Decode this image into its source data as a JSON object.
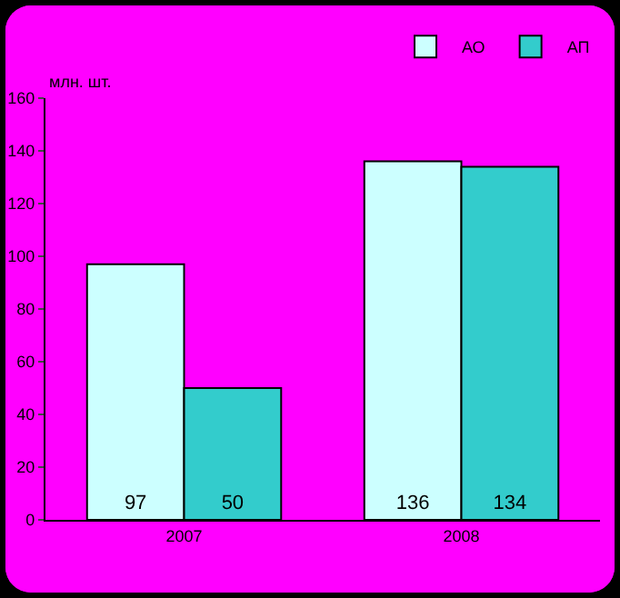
{
  "chart_data": {
    "type": "bar",
    "ylabel": "млн. шт.",
    "categories": [
      "2007",
      "2008"
    ],
    "series": [
      {
        "name": "АО",
        "color": "#ccffff",
        "values": [
          97,
          136
        ]
      },
      {
        "name": "АП",
        "color": "#33cccc",
        "values": [
          50,
          134
        ]
      }
    ],
    "ylim": [
      0,
      160
    ],
    "yticks": [
      0,
      20,
      40,
      60,
      80,
      100,
      120,
      140,
      160
    ],
    "data_labels": true,
    "grid": false,
    "legend": "top right"
  }
}
